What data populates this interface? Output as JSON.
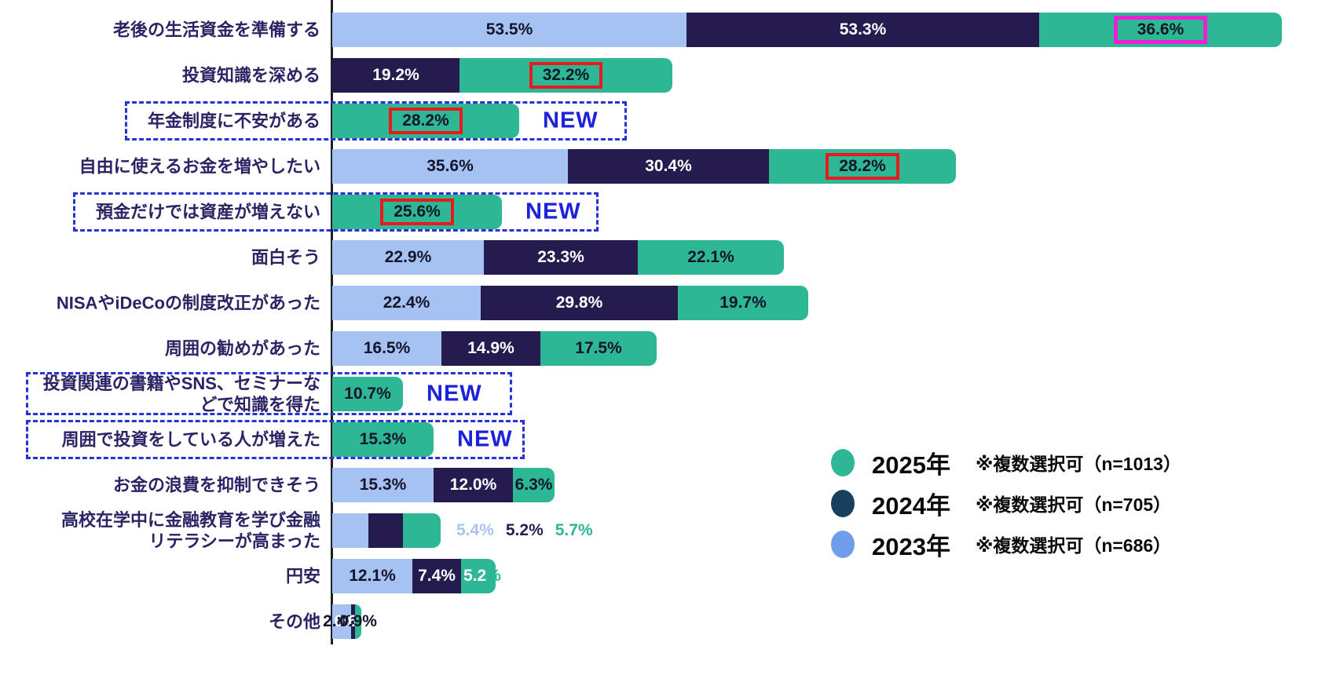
{
  "colors": {
    "bar_2023": "#a5c2f2",
    "bar_2024": "#261b4e",
    "bar_2025": "#2db795",
    "legend_2023": "#6f9de9",
    "legend_2024": "#17405f",
    "legend_2025": "#2db795",
    "value_dark": "#14142b",
    "value_light": "#ffffff",
    "outside_2023": "#a9c4f1",
    "outside_2024": "#262150",
    "outside_2025": "#2db795",
    "category_label": "#2a2464",
    "new_blue": "#1b22d9",
    "dash_blue": "#2433d4",
    "red_frame": "#ea191d",
    "magenta_frame": "#ef1fd4",
    "axis": "#1e1e26"
  },
  "chart_data": {
    "type": "bar",
    "orientation": "horizontal",
    "stacked": true,
    "unit": "%",
    "grid": false,
    "legend_position": "bottom-right",
    "new_badge_text": "NEW",
    "legend": [
      {
        "year": "2025年",
        "note": "※複数選択可（n=1013）",
        "series": "2025"
      },
      {
        "year": "2024年",
        "note": "※複数選択可（n=705）",
        "series": "2024"
      },
      {
        "year": "2023年",
        "note": "※複数選択可（n=686）",
        "series": "2023"
      }
    ],
    "rows": [
      {
        "label": "老後の生活資金を準備する",
        "segments": [
          {
            "series": "2023",
            "value": 53.5,
            "label": "53.5%"
          },
          {
            "series": "2024",
            "value": 53.3,
            "label": "53.3%"
          },
          {
            "series": "2025",
            "value": 36.6,
            "label": "36.6%",
            "box": "magenta"
          }
        ]
      },
      {
        "label": "投資知識を深める",
        "segments": [
          {
            "series": "2024",
            "value": 19.2,
            "label": "19.2%"
          },
          {
            "series": "2025",
            "value": 32.2,
            "label": "32.2%",
            "box": "red"
          }
        ]
      },
      {
        "label": "年金制度に不安がある",
        "new": true,
        "segments": [
          {
            "series": "2025",
            "value": 28.2,
            "label": "28.2%",
            "box": "red"
          }
        ]
      },
      {
        "label": "自由に使えるお金を増やしたい",
        "segments": [
          {
            "series": "2023",
            "value": 35.6,
            "label": "35.6%"
          },
          {
            "series": "2024",
            "value": 30.4,
            "label": "30.4%"
          },
          {
            "series": "2025",
            "value": 28.2,
            "label": "28.2%",
            "box": "red"
          }
        ]
      },
      {
        "label": "預金だけでは資産が増えない",
        "new": true,
        "segments": [
          {
            "series": "2025",
            "value": 25.6,
            "label": "25.6%",
            "box": "red"
          }
        ]
      },
      {
        "label": "面白そう",
        "segments": [
          {
            "series": "2023",
            "value": 22.9,
            "label": "22.9%"
          },
          {
            "series": "2024",
            "value": 23.3,
            "label": "23.3%"
          },
          {
            "series": "2025",
            "value": 22.1,
            "label": "22.1%"
          }
        ]
      },
      {
        "label": "NISAやiDeCoの制度改正があった",
        "segments": [
          {
            "series": "2023",
            "value": 22.4,
            "label": "22.4%"
          },
          {
            "series": "2024",
            "value": 29.8,
            "label": "29.8%"
          },
          {
            "series": "2025",
            "value": 19.7,
            "label": "19.7%"
          }
        ]
      },
      {
        "label": "周囲の勧めがあった",
        "segments": [
          {
            "series": "2023",
            "value": 16.5,
            "label": "16.5%"
          },
          {
            "series": "2024",
            "value": 14.9,
            "label": "14.9%"
          },
          {
            "series": "2025",
            "value": 17.5,
            "label": "17.5%"
          }
        ]
      },
      {
        "label": "投資関連の書籍やSNS、セミナーなどで知識を得た",
        "label_lines": [
          "投資関連の書籍やSNS、セミナーな",
          "どで知識を得た"
        ],
        "new": true,
        "segments": [
          {
            "series": "2025",
            "value": 10.7,
            "label": "10.7%"
          }
        ]
      },
      {
        "label": "周囲で投資をしている人が増えた",
        "new": true,
        "segments": [
          {
            "series": "2025",
            "value": 15.3,
            "label": "15.3%"
          }
        ]
      },
      {
        "label": "お金の浪費を抑制できそう",
        "segments": [
          {
            "series": "2023",
            "value": 15.3,
            "label": "15.3%"
          },
          {
            "series": "2024",
            "value": 12.0,
            "label": "12.0%"
          },
          {
            "series": "2025",
            "value": 6.3,
            "label": "6.3%"
          }
        ]
      },
      {
        "label": "高校在学中に金融教育を学び金融リテラシーが高まった",
        "label_lines": [
          "高校在学中に金融教育を学び金融",
          "リテラシーが高まった"
        ],
        "labels_outside": true,
        "segments": [
          {
            "series": "2023",
            "value": 5.4,
            "label": "5.4%"
          },
          {
            "series": "2024",
            "value": 5.2,
            "label": "5.2%"
          },
          {
            "series": "2025",
            "value": 5.7,
            "label": "5.7%"
          }
        ]
      },
      {
        "label": "円安",
        "segments": [
          {
            "series": "2023",
            "value": 12.1,
            "label": "12.1%"
          },
          {
            "series": "2024",
            "value": 7.4,
            "label": "7.4%"
          },
          {
            "series": "2025",
            "value": 5.2,
            "label": "5.2%",
            "label_parts": [
              {
                "text": "5.2",
                "color": "white"
              },
              {
                "text": "%",
                "color": "series"
              }
            ]
          }
        ]
      },
      {
        "label": "その他",
        "segments": [
          {
            "series": "2023",
            "value": 2.8,
            "label": "2.8%"
          },
          {
            "series": "2024",
            "value": 0.6,
            "label": "0.6%"
          },
          {
            "series": "2025",
            "value": 0.9,
            "label": "0.9%"
          }
        ]
      }
    ]
  }
}
